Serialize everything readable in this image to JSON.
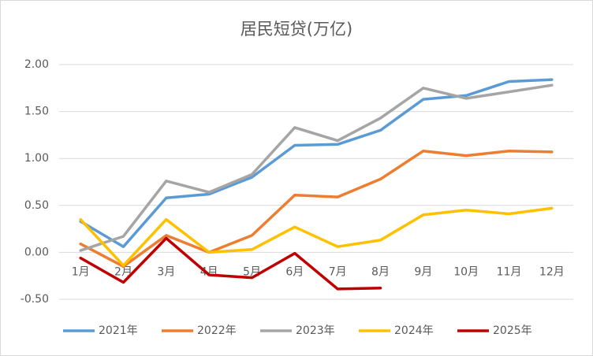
{
  "chart_data": {
    "type": "line",
    "title": "居民短贷(万亿)",
    "categories": [
      "1月",
      "2月",
      "3月",
      "4月",
      "5月",
      "6月",
      "7月",
      "8月",
      "9月",
      "10月",
      "11月",
      "12月"
    ],
    "ylim": [
      -0.5,
      2.0
    ],
    "yticks": [
      {
        "value": -0.5,
        "label": "-0.50"
      },
      {
        "value": 0,
        "label": "0.00"
      },
      {
        "value": 0.5,
        "label": "0.50"
      },
      {
        "value": 1,
        "label": "1.00"
      },
      {
        "value": 1.5,
        "label": "1.50"
      },
      {
        "value": 2,
        "label": "2.00"
      }
    ],
    "grid": true,
    "legend": "bottom",
    "series": [
      {
        "name": "2021年",
        "color": "#5b9bd5",
        "values": [
          0.33,
          0.06,
          0.58,
          0.62,
          0.8,
          1.14,
          1.15,
          1.3,
          1.63,
          1.67,
          1.82,
          1.84
        ]
      },
      {
        "name": "2022年",
        "color": "#ed7d31",
        "values": [
          0.09,
          -0.15,
          0.18,
          0.0,
          0.18,
          0.61,
          0.59,
          0.78,
          1.08,
          1.03,
          1.08,
          1.07
        ]
      },
      {
        "name": "2023年",
        "color": "#a5a5a5",
        "values": [
          0.02,
          0.17,
          0.76,
          0.64,
          0.83,
          1.33,
          1.19,
          1.43,
          1.75,
          1.64,
          1.71,
          1.78
        ]
      },
      {
        "name": "2024年",
        "color": "#ffc000",
        "values": [
          0.35,
          -0.14,
          0.35,
          0.0,
          0.03,
          0.27,
          0.06,
          0.13,
          0.4,
          0.45,
          0.41,
          0.47
        ]
      },
      {
        "name": "2025年",
        "color": "#c00000",
        "values": [
          -0.06,
          -0.32,
          0.15,
          -0.24,
          -0.27,
          -0.01,
          -0.39,
          -0.38,
          null,
          null,
          null,
          null
        ]
      }
    ]
  }
}
